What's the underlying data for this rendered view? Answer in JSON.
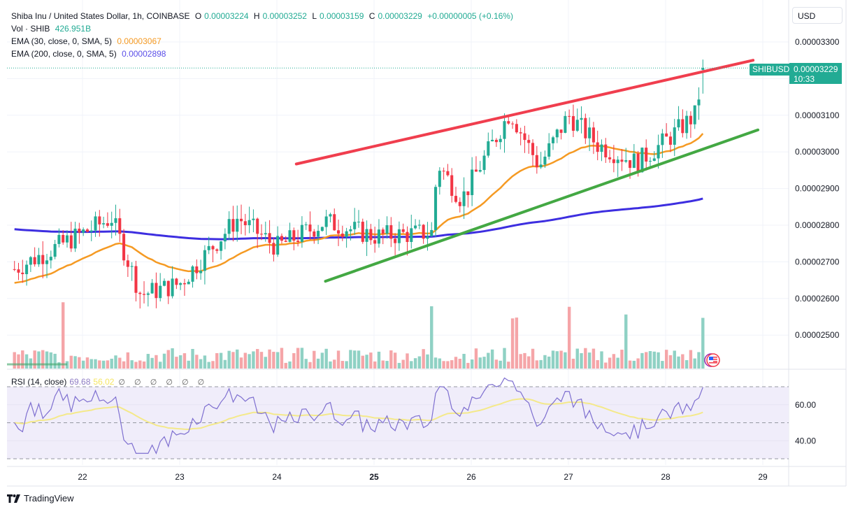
{
  "header": {
    "title": "Shiba Inu / United States Dollar, 1h, COINBASE",
    "open_label": "O",
    "open": "0.00003224",
    "high_label": "H",
    "high": "0.00003252",
    "low_label": "L",
    "low": "0.00003159",
    "close_label": "C",
    "close": "0.00003229",
    "change": "+0.00000005 (+0.16%)"
  },
  "indicators": {
    "volume": {
      "label": "Vol · SHIB",
      "value": "426.951B"
    },
    "ema30": {
      "label": "EMA (30, close, 0, SMA, 5)",
      "value": "0.00003067",
      "color": "#f59a23"
    },
    "ema200": {
      "label": "EMA (200, close, 0, SMA, 5)",
      "value": "0.00002898",
      "color": "#3d2ee0"
    },
    "rsi": {
      "label": "RSI (14, close)",
      "value": "69.68",
      "ma_value": "56.02",
      "placeholders": "∅ ∅ ∅ ∅ ∅ ∅"
    }
  },
  "price_axis": {
    "currency": "USD",
    "ticks": [
      "0.00003300",
      "0.00003100",
      "0.00003000",
      "0.00002900",
      "0.00002800",
      "0.00002700",
      "0.00002600",
      "0.00002500"
    ],
    "current_price": "0.00003229",
    "countdown": "10:33",
    "symbol_tag": "SHIBUSD"
  },
  "rsi_axis": {
    "ticks": [
      "60.00",
      "40.00"
    ]
  },
  "time_axis": {
    "ticks": [
      "22",
      "23",
      "24",
      "25",
      "26",
      "27",
      "28",
      "29"
    ],
    "bold": "25"
  },
  "branding": {
    "logo_text": "TradingView",
    "logo_mark": "17"
  },
  "colors": {
    "up": "#22ab94",
    "down": "#f23645",
    "vol_up": "#8fd1c4",
    "vol_down": "#f5a5a8",
    "resistance": "#f03e4e",
    "support": "#43a843",
    "ema30": "#f59a23",
    "ema200": "#3d2ee0",
    "rsi": "#7e6fd0",
    "rsi_ma": "#f4e98a",
    "rsi_band": "#f0edfa"
  },
  "chart_data": [
    {
      "type": "candlestick",
      "title": "Shiba Inu / United States Dollar, 1h, COINBASE",
      "xlabel": "",
      "ylabel": "USD",
      "x_ticks": [
        "22",
        "23",
        "24",
        "25",
        "26",
        "27",
        "28",
        "29"
      ],
      "ylim": [
        2.41e-05,
        3.33e-05
      ],
      "last_bar": {
        "open": 3.224e-05,
        "high": 3.252e-05,
        "low": 3.159e-05,
        "close": 3.229e-05
      },
      "approx_close_path": [
        {
          "x": "21.3",
          "close": 2.68e-05
        },
        {
          "x": "21.8",
          "close": 2.75e-05
        },
        {
          "x": "22.3",
          "close": 2.82e-05
        },
        {
          "x": "22.6",
          "close": 2.61e-05
        },
        {
          "x": "23.0",
          "close": 2.64e-05
        },
        {
          "x": "23.6",
          "close": 2.82e-05
        },
        {
          "x": "24.0",
          "close": 2.74e-05
        },
        {
          "x": "24.5",
          "close": 2.81e-05
        },
        {
          "x": "25.0",
          "close": 2.77e-05
        },
        {
          "x": "25.6",
          "close": 2.78e-05
        },
        {
          "x": "25.65",
          "close": 2.97e-05
        },
        {
          "x": "25.9",
          "close": 2.87e-05
        },
        {
          "x": "26.4",
          "close": 3.11e-05
        },
        {
          "x": "26.7",
          "close": 2.96e-05
        },
        {
          "x": "27.0",
          "close": 3.1e-05
        },
        {
          "x": "27.3",
          "close": 3.02e-05
        },
        {
          "x": "27.7",
          "close": 2.97e-05
        },
        {
          "x": "28.0",
          "close": 3.03e-05
        },
        {
          "x": "28.3",
          "close": 3.1e-05
        },
        {
          "x": "28.4",
          "close": 3.23e-05
        }
      ],
      "series": [
        {
          "name": "EMA (30)",
          "last": 3.067e-05
        },
        {
          "name": "EMA (200)",
          "last": 2.898e-05
        }
      ],
      "trendlines": [
        {
          "name": "resistance",
          "from": [
            "24.2",
            2.967e-05
          ],
          "to": [
            "28.9",
            3.25e-05
          ]
        },
        {
          "name": "support",
          "from": [
            "24.5",
            2.647e-05
          ],
          "to": [
            "28.95",
            3.06e-05
          ]
        }
      ]
    },
    {
      "type": "bar",
      "title": "Vol · SHIB",
      "last_value": "426.951B",
      "notable_spikes_x": [
        "21.8",
        "25.6",
        "26.45",
        "27.0",
        "27.6",
        "28.4"
      ]
    },
    {
      "type": "line",
      "title": "RSI (14, close)",
      "ylim": [
        20,
        80
      ],
      "y_ticks": [
        60,
        40
      ],
      "bands": [
        70,
        50,
        30
      ],
      "series": [
        {
          "name": "RSI",
          "last": 69.68
        },
        {
          "name": "RSI-based MA",
          "last": 56.02
        }
      ]
    }
  ]
}
